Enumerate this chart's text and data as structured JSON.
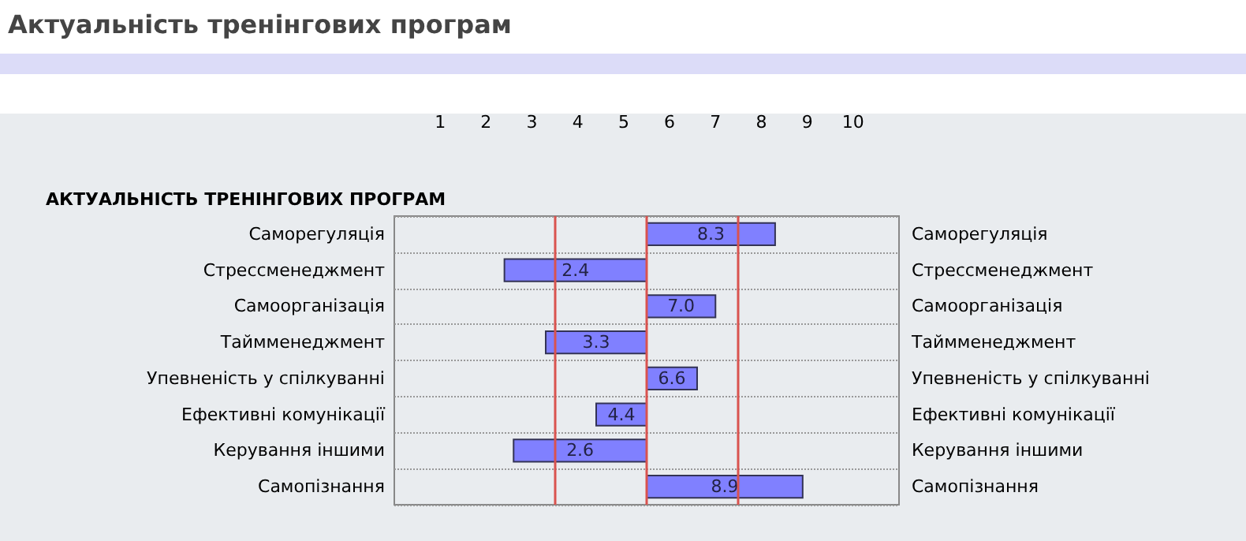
{
  "chart_data": {
    "type": "bar",
    "orientation": "horizontal",
    "title": "Актуальність тренінгових програм",
    "subtitle": "АКТУАЛЬНІСТЬ ТРЕНІНГОВИХ ПРОГРАМ",
    "categories": [
      "Саморегуляція",
      "Стрессменеджмент",
      "Самоорганізація",
      "Таймменеджмент",
      "Упевненість у спілкуванні",
      "Ефективні комунікації",
      "Керування іншими",
      "Самопізнання"
    ],
    "base": [
      5.5,
      5.5,
      5.5,
      5.5,
      5.5,
      5.5,
      5.5,
      5.5
    ],
    "values": [
      2.8,
      -3.1,
      1.5,
      -2.2,
      1.1,
      -1.1,
      -2.9,
      3.4
    ],
    "value_labels": [
      "8.3",
      "2.4",
      "7.0",
      "3.3",
      "6.6",
      "4.4",
      "2.6",
      "8.9"
    ],
    "color": "#8080ff",
    "xlim": [
      0,
      11
    ],
    "xticks": [
      1,
      2,
      3,
      4,
      5,
      6,
      7,
      8,
      9,
      10
    ],
    "ref_lines": [
      {
        "axis": "x",
        "value": 3.5,
        "color": "#d9534f"
      },
      {
        "axis": "x",
        "value": 5.5,
        "color": "#d9534f"
      },
      {
        "axis": "x",
        "value": 7.5,
        "color": "#d9534f"
      }
    ],
    "grid": "y"
  }
}
